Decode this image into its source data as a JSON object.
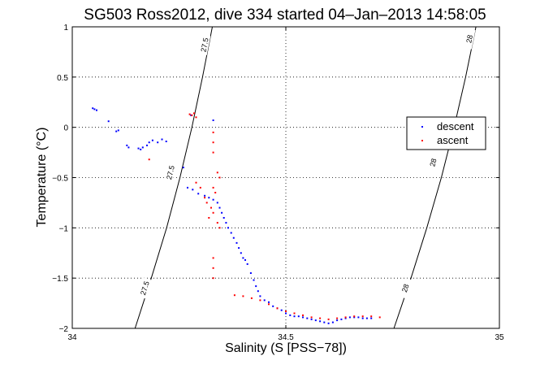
{
  "chart_data": {
    "type": "scatter",
    "title": "SG503 Ross2012, dive 334 started 04–Jan–2013 14:58:05",
    "xlabel": "Salinity (S [PSS−78])",
    "ylabel": "Temperature (°C)",
    "xlim": [
      34,
      35
    ],
    "ylim": [
      -2,
      1
    ],
    "grid": true,
    "legend_position": "upper-right",
    "x_ticks": [
      {
        "value": 34,
        "label": "34"
      },
      {
        "value": 34.5,
        "label": "34.5"
      },
      {
        "value": 35,
        "label": "35"
      }
    ],
    "y_ticks": [
      {
        "value": 1,
        "label": "1"
      },
      {
        "value": 0.5,
        "label": "0.5"
      },
      {
        "value": 0,
        "label": "0"
      },
      {
        "value": -0.5,
        "label": "−0.5"
      },
      {
        "value": -1,
        "label": "−1"
      },
      {
        "value": -1.5,
        "label": "−1.5"
      },
      {
        "value": -2,
        "label": "−2"
      }
    ],
    "isopycnals": [
      {
        "label": "27.5",
        "points": [
          [
            34.147,
            -2.0
          ],
          [
            34.185,
            -1.5
          ],
          [
            34.221,
            -1.0
          ],
          [
            34.252,
            -0.5
          ],
          [
            34.28,
            0.0
          ],
          [
            34.305,
            0.5
          ],
          [
            34.328,
            1.0
          ]
        ],
        "label_positions": [
          [
            34.17,
            -1.6
          ],
          [
            34.23,
            -0.45
          ],
          [
            34.31,
            0.82
          ]
        ]
      },
      {
        "label": "28",
        "points": [
          [
            34.753,
            -2.0
          ],
          [
            34.793,
            -1.5
          ],
          [
            34.83,
            -1.0
          ],
          [
            34.864,
            -0.5
          ],
          [
            34.894,
            0.0
          ],
          [
            34.921,
            0.5
          ],
          [
            34.945,
            1.0
          ]
        ],
        "label_positions": [
          [
            34.78,
            -1.6
          ],
          [
            34.845,
            -0.35
          ],
          [
            34.93,
            0.88
          ]
        ]
      }
    ],
    "series": [
      {
        "name": "descent",
        "color": "#0000ff",
        "points": [
          [
            34.048,
            0.19
          ],
          [
            34.052,
            0.18
          ],
          [
            34.057,
            0.17
          ],
          [
            34.085,
            0.06
          ],
          [
            34.103,
            -0.04
          ],
          [
            34.108,
            -0.03
          ],
          [
            34.128,
            -0.18
          ],
          [
            34.132,
            -0.2
          ],
          [
            34.155,
            -0.21
          ],
          [
            34.16,
            -0.22
          ],
          [
            34.165,
            -0.2
          ],
          [
            34.175,
            -0.18
          ],
          [
            34.18,
            -0.15
          ],
          [
            34.188,
            -0.13
          ],
          [
            34.2,
            -0.15
          ],
          [
            34.21,
            -0.12
          ],
          [
            34.22,
            -0.14
          ],
          [
            34.26,
            -0.4
          ],
          [
            34.278,
            0.12
          ],
          [
            34.33,
            0.07
          ],
          [
            34.27,
            -0.6
          ],
          [
            34.282,
            -0.62
          ],
          [
            34.295,
            -0.66
          ],
          [
            34.31,
            -0.68
          ],
          [
            34.32,
            -0.7
          ],
          [
            34.33,
            -0.72
          ],
          [
            34.34,
            -0.75
          ],
          [
            34.345,
            -0.8
          ],
          [
            34.35,
            -0.85
          ],
          [
            34.355,
            -0.9
          ],
          [
            34.36,
            -0.95
          ],
          [
            34.365,
            -1.0
          ],
          [
            34.372,
            -1.05
          ],
          [
            34.378,
            -1.1
          ],
          [
            34.385,
            -1.15
          ],
          [
            34.39,
            -1.2
          ],
          [
            34.395,
            -1.25
          ],
          [
            34.4,
            -1.3
          ],
          [
            34.405,
            -1.32
          ],
          [
            34.41,
            -1.36
          ],
          [
            34.418,
            -1.45
          ],
          [
            34.425,
            -1.52
          ],
          [
            34.43,
            -1.58
          ],
          [
            34.435,
            -1.63
          ],
          [
            34.44,
            -1.68
          ],
          [
            34.45,
            -1.72
          ],
          [
            34.46,
            -1.74
          ],
          [
            34.47,
            -1.78
          ],
          [
            34.48,
            -1.8
          ],
          [
            34.49,
            -1.82
          ],
          [
            34.5,
            -1.85
          ],
          [
            34.51,
            -1.87
          ],
          [
            34.52,
            -1.88
          ],
          [
            34.53,
            -1.88
          ],
          [
            34.54,
            -1.89
          ],
          [
            34.55,
            -1.9
          ],
          [
            34.56,
            -1.91
          ],
          [
            34.57,
            -1.92
          ],
          [
            34.58,
            -1.93
          ],
          [
            34.59,
            -1.94
          ],
          [
            34.6,
            -1.95
          ],
          [
            34.61,
            -1.94
          ],
          [
            34.62,
            -1.92
          ],
          [
            34.63,
            -1.91
          ],
          [
            34.64,
            -1.9
          ],
          [
            34.65,
            -1.89
          ],
          [
            34.66,
            -1.89
          ],
          [
            34.67,
            -1.89
          ],
          [
            34.68,
            -1.9
          ],
          [
            34.69,
            -1.9
          ],
          [
            34.7,
            -1.9
          ]
        ]
      },
      {
        "name": "ascent",
        "color": "#ff0000",
        "points": [
          [
            34.18,
            -0.32
          ],
          [
            34.275,
            0.13
          ],
          [
            34.28,
            0.12
          ],
          [
            34.285,
            0.14
          ],
          [
            34.29,
            0.1
          ],
          [
            34.33,
            -0.05
          ],
          [
            34.33,
            -0.15
          ],
          [
            34.33,
            -0.25
          ],
          [
            34.34,
            -0.45
          ],
          [
            34.345,
            -0.5
          ],
          [
            34.335,
            -0.65
          ],
          [
            34.33,
            -0.6
          ],
          [
            34.3,
            -0.6
          ],
          [
            34.29,
            -0.55
          ],
          [
            34.31,
            -0.7
          ],
          [
            34.315,
            -0.75
          ],
          [
            34.325,
            -0.8
          ],
          [
            34.33,
            -0.85
          ],
          [
            34.32,
            -0.9
          ],
          [
            34.34,
            -0.95
          ],
          [
            34.345,
            -1.0
          ],
          [
            34.33,
            -1.3
          ],
          [
            34.33,
            -1.4
          ],
          [
            34.33,
            -1.5
          ],
          [
            34.38,
            -1.67
          ],
          [
            34.4,
            -1.68
          ],
          [
            34.42,
            -1.7
          ],
          [
            34.44,
            -1.72
          ],
          [
            34.46,
            -1.76
          ],
          [
            34.48,
            -1.8
          ],
          [
            34.5,
            -1.83
          ],
          [
            34.52,
            -1.85
          ],
          [
            34.54,
            -1.87
          ],
          [
            34.56,
            -1.89
          ],
          [
            34.58,
            -1.9
          ],
          [
            34.6,
            -1.91
          ],
          [
            34.62,
            -1.9
          ],
          [
            34.64,
            -1.89
          ],
          [
            34.66,
            -1.88
          ],
          [
            34.68,
            -1.88
          ],
          [
            34.7,
            -1.88
          ],
          [
            34.72,
            -1.89
          ]
        ]
      }
    ]
  }
}
